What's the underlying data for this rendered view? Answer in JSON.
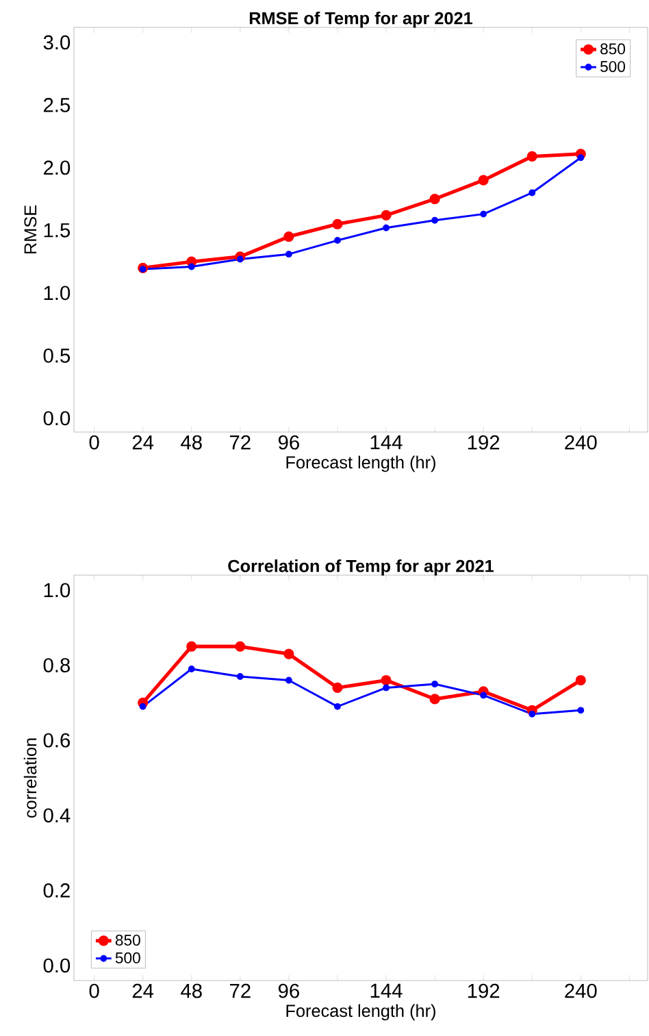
{
  "chart_data": [
    {
      "type": "line",
      "title": "RMSE of Temp for apr 2021",
      "xlabel": "Forecast length (hr)",
      "ylabel": "RMSE",
      "x": [
        24,
        48,
        72,
        96,
        120,
        144,
        168,
        192,
        216,
        240
      ],
      "series": [
        {
          "name": "850",
          "color": "#ff0000",
          "values": [
            1.2,
            1.25,
            1.29,
            1.45,
            1.55,
            1.62,
            1.75,
            1.9,
            2.09,
            2.11
          ]
        },
        {
          "name": "500",
          "color": "#0000ff",
          "values": [
            1.19,
            1.21,
            1.27,
            1.31,
            1.42,
            1.52,
            1.58,
            1.63,
            1.8,
            2.08
          ]
        }
      ],
      "xlim": [
        -10,
        273
      ],
      "ylim": [
        -0.11,
        3.12
      ],
      "xticks": [
        0,
        24,
        48,
        72,
        96,
        {
          "value": 120,
          "label": null
        },
        144,
        {
          "value": 168,
          "label": null
        },
        192,
        {
          "value": 216,
          "label": null
        },
        240,
        {
          "value": 264,
          "label": null
        }
      ],
      "yticks": [
        {
          "value": 0,
          "label": "0.0"
        },
        {
          "value": 0.5,
          "label": "0.5"
        },
        {
          "value": 1,
          "label": "1.0"
        },
        {
          "value": 1.5,
          "label": "1.5"
        },
        {
          "value": 2,
          "label": "2.0"
        },
        {
          "value": 2.5,
          "label": "2.5"
        },
        {
          "value": 3,
          "label": "3.0"
        }
      ],
      "marker": "circle",
      "legend": "top right",
      "grid": false
    },
    {
      "type": "line",
      "title": "Correlation of Temp for apr 2021",
      "xlabel": "Forecast length (hr)",
      "ylabel": "correlation",
      "x": [
        24,
        48,
        72,
        96,
        120,
        144,
        168,
        192,
        216,
        240
      ],
      "series": [
        {
          "name": "850",
          "color": "#ff0000",
          "values": [
            0.7,
            0.85,
            0.85,
            0.83,
            0.74,
            0.76,
            0.71,
            0.73,
            0.68,
            0.76
          ]
        },
        {
          "name": "500",
          "color": "#0000ff",
          "values": [
            0.69,
            0.79,
            0.77,
            0.76,
            0.69,
            0.74,
            0.75,
            0.72,
            0.67,
            0.68
          ]
        }
      ],
      "xlim": [
        -10,
        273
      ],
      "ylim": [
        -0.04,
        1.04
      ],
      "xticks": [
        0,
        24,
        48,
        72,
        96,
        {
          "value": 120,
          "label": null
        },
        144,
        {
          "value": 168,
          "label": null
        },
        192,
        {
          "value": 216,
          "label": null
        },
        240,
        {
          "value": 264,
          "label": null
        }
      ],
      "yticks": [
        {
          "value": 0,
          "label": "0.0"
        },
        {
          "value": 0.2,
          "label": "0.2"
        },
        {
          "value": 0.4,
          "label": "0.4"
        },
        {
          "value": 0.6,
          "label": "0.6"
        },
        {
          "value": 0.8,
          "label": "0.8"
        },
        {
          "value": 1,
          "label": "1.0"
        }
      ],
      "marker": "circle",
      "legend": "bottom left",
      "grid": false
    }
  ]
}
